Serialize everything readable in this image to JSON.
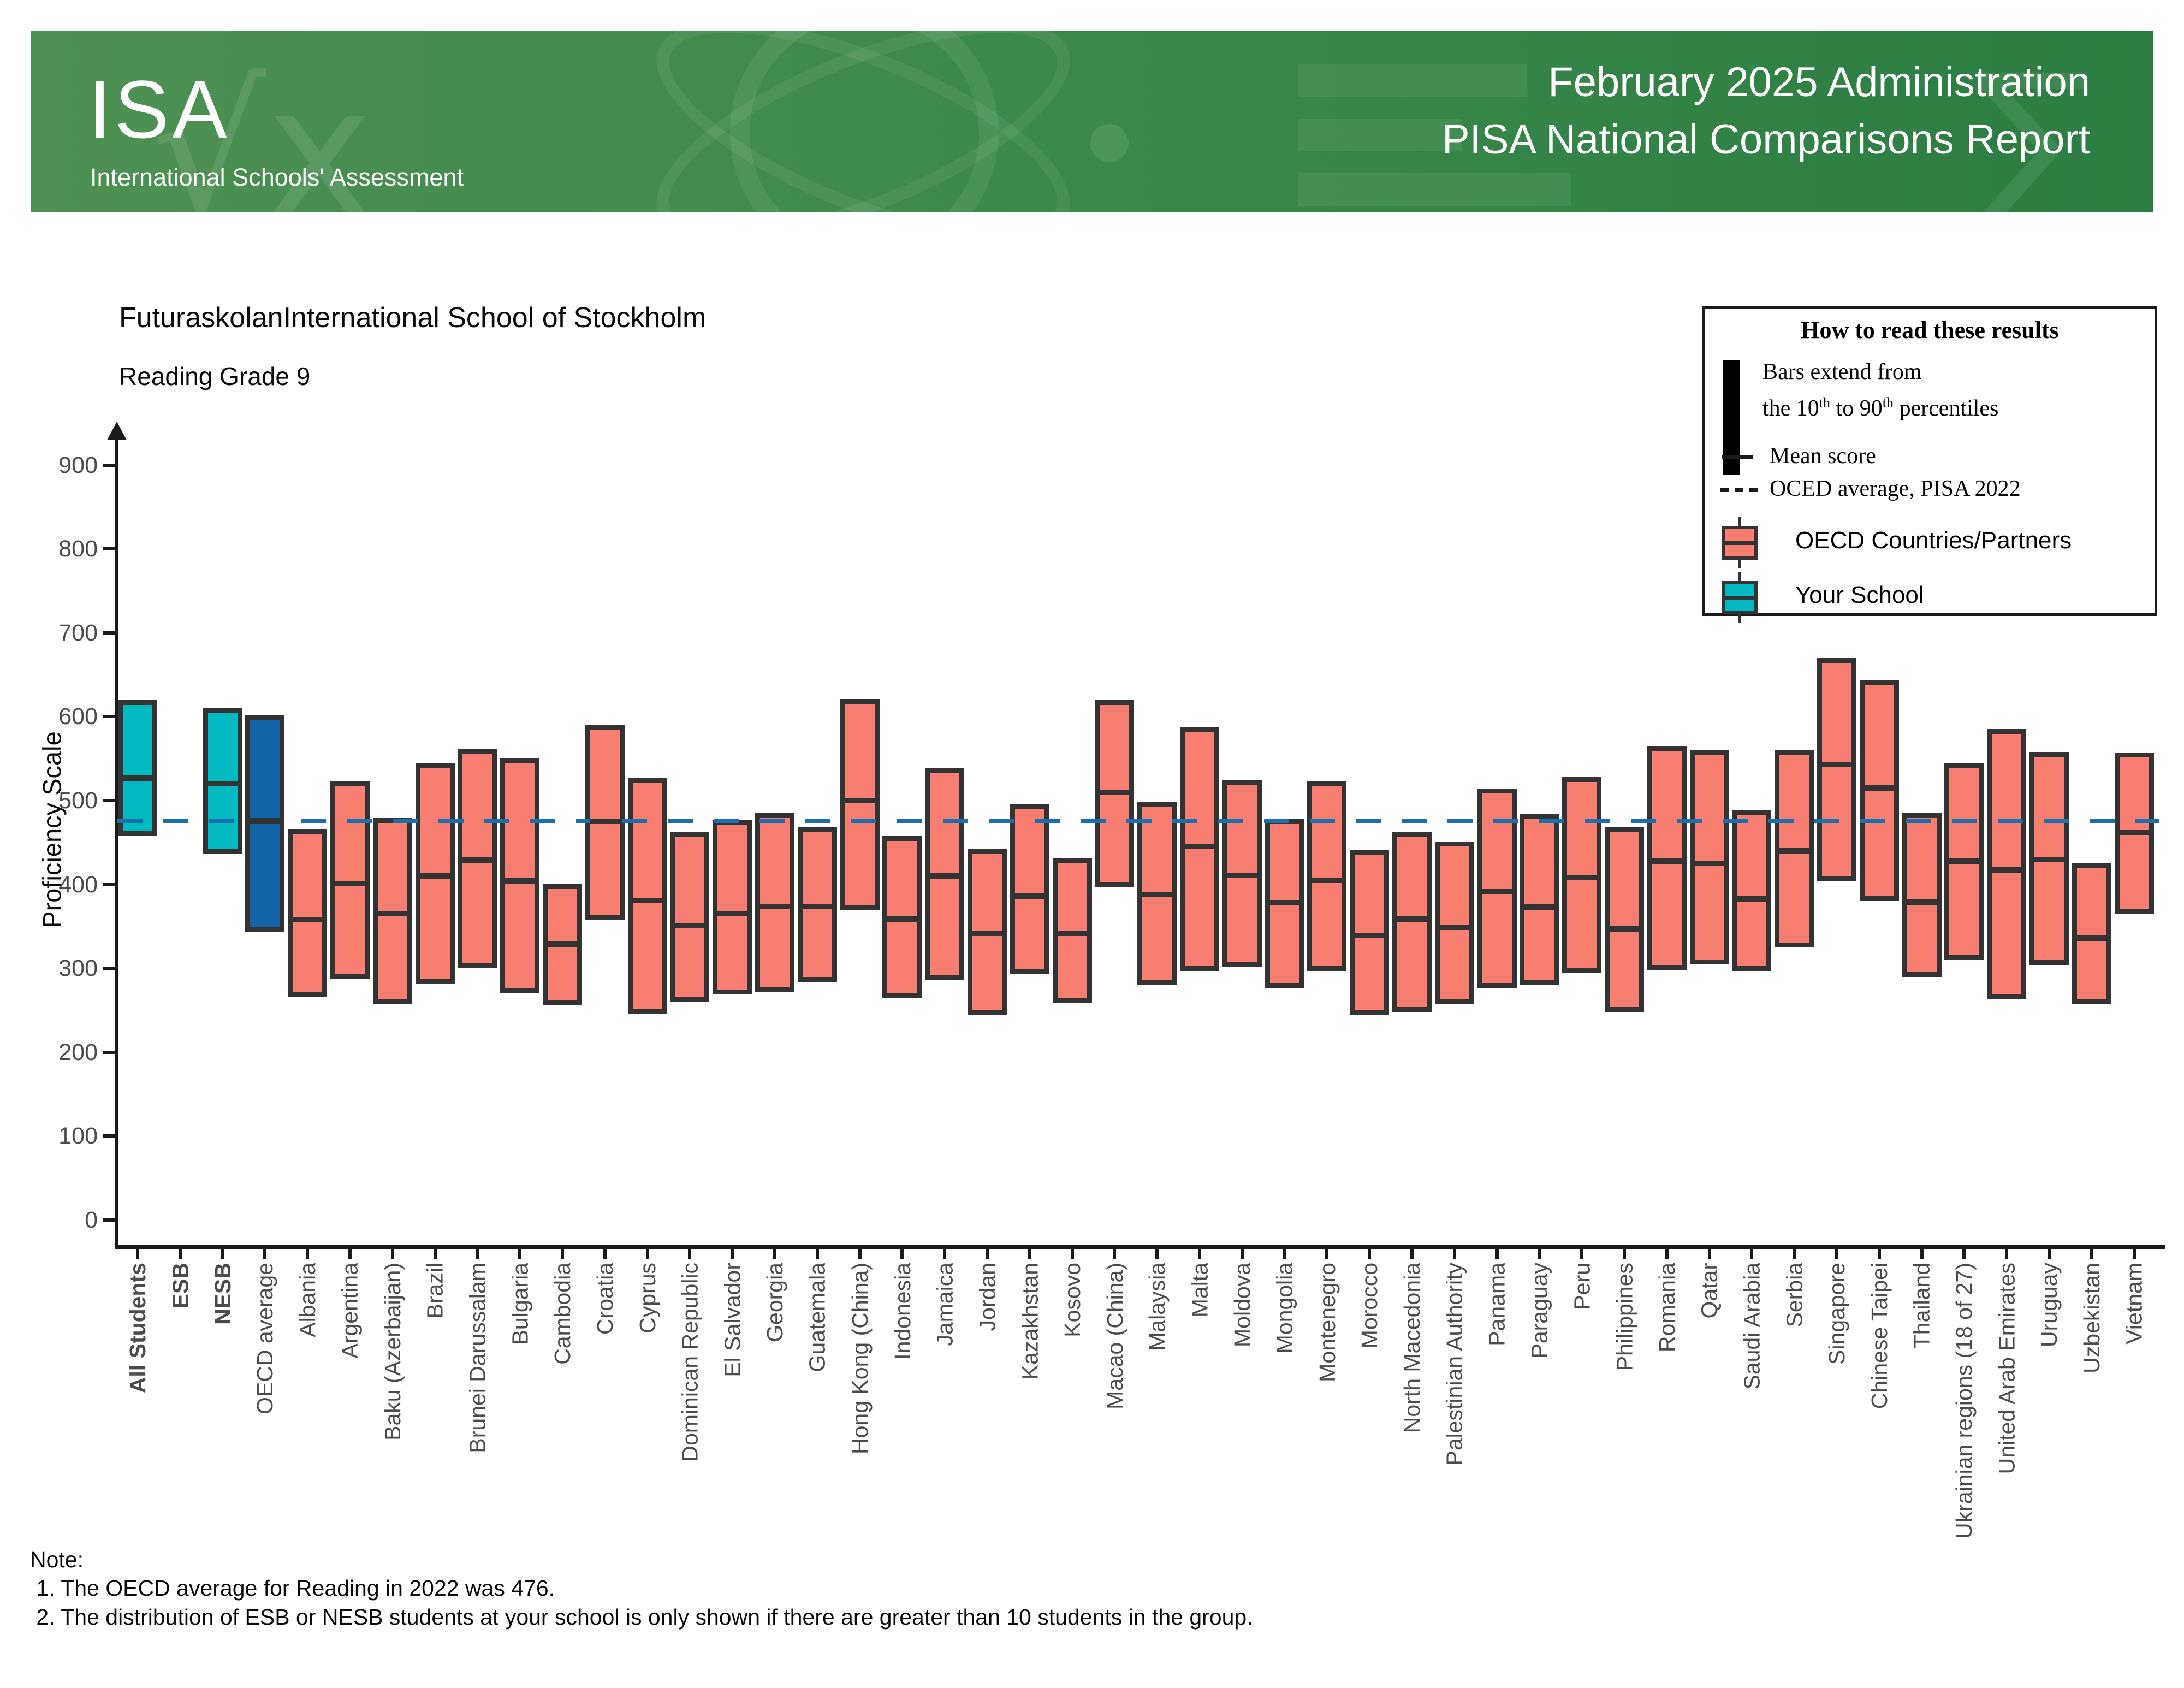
{
  "header": {
    "logo": "ISA",
    "logo_subtitle": "International Schools' Assessment",
    "line1": "February 2025 Administration",
    "line2": "PISA National Comparisons Report",
    "watermarks": {
      "sqrt": "√x",
      "sigma": "∑"
    }
  },
  "titles": {
    "school": "FuturaskolanInternational School of Stockholm",
    "assessment": "Reading Grade 9"
  },
  "legend": {
    "title": "How to read these results",
    "bars_line1": "Bars extend from",
    "bars_line2": {
      "p0": "the 10",
      "sup0": "th",
      "p1": " to 90",
      "sup1": "th",
      "p2": " percentiles"
    },
    "mean_label": "Mean score",
    "ref_label": "OCED average, PISA 2022",
    "countries_label": "OECD Countries/Partners",
    "school_label": "Your School"
  },
  "note": {
    "heading": "Note:",
    "line1": " 1. The OECD average for Reading in 2022 was 476.",
    "line2": " 2. The distribution of ESB or NESB students at your school is only shown if there are greater than 10 students in the group."
  },
  "chart_data": {
    "type": "bar",
    "variant": "boxplot-10th-90th-percentile",
    "title": "FuturaskolanInternational School of Stockholm",
    "subtitle": "Reading Grade 9",
    "xlabel": "",
    "ylabel": "Proficiency Scale",
    "ylim": [
      0,
      975
    ],
    "yticks": [
      0,
      100,
      200,
      300,
      400,
      500,
      600,
      700,
      800,
      900
    ],
    "grid": false,
    "reference_line": {
      "value": 476,
      "label": "OCED average, PISA 2022",
      "style": "dashed"
    },
    "colors": {
      "your_school": "#00b9c1",
      "oecd_average_bar": "#1465a8",
      "country": "#f87e72",
      "box_border": "#333333",
      "reference_line": "#1b6fad"
    },
    "categories": [
      {
        "label": "All Students",
        "group": "school",
        "bold": true,
        "p10": 458,
        "mean": 527,
        "p90": 620
      },
      {
        "label": "ESB",
        "group": "school",
        "bold": true,
        "p10": null,
        "mean": null,
        "p90": null
      },
      {
        "label": "NESB",
        "group": "school",
        "bold": true,
        "p10": 437,
        "mean": 520,
        "p90": 611
      },
      {
        "label": "OECD average",
        "group": "oecd",
        "bold": false,
        "p10": 343,
        "mean": 476,
        "p90": 602
      },
      {
        "label": "Albania",
        "group": "country",
        "bold": false,
        "p10": 266,
        "mean": 358,
        "p90": 466
      },
      {
        "label": "Argentina",
        "group": "country",
        "bold": false,
        "p10": 288,
        "mean": 401,
        "p90": 523
      },
      {
        "label": "Baku (Azerbaijan)",
        "group": "country",
        "bold": false,
        "p10": 258,
        "mean": 365,
        "p90": 479
      },
      {
        "label": "Brazil",
        "group": "country",
        "bold": false,
        "p10": 282,
        "mean": 410,
        "p90": 544
      },
      {
        "label": "Brunei Darussalam",
        "group": "country",
        "bold": false,
        "p10": 301,
        "mean": 429,
        "p90": 562
      },
      {
        "label": "Bulgaria",
        "group": "country",
        "bold": false,
        "p10": 271,
        "mean": 404,
        "p90": 551
      },
      {
        "label": "Cambodia",
        "group": "country",
        "bold": false,
        "p10": 256,
        "mean": 329,
        "p90": 401
      },
      {
        "label": "Croatia",
        "group": "country",
        "bold": false,
        "p10": 358,
        "mean": 475,
        "p90": 590
      },
      {
        "label": "Cyprus",
        "group": "country",
        "bold": false,
        "p10": 246,
        "mean": 381,
        "p90": 527
      },
      {
        "label": "Dominican Republic",
        "group": "country",
        "bold": false,
        "p10": 260,
        "mean": 351,
        "p90": 462
      },
      {
        "label": "El Salvador",
        "group": "country",
        "bold": false,
        "p10": 269,
        "mean": 365,
        "p90": 477
      },
      {
        "label": "Georgia",
        "group": "country",
        "bold": false,
        "p10": 272,
        "mean": 374,
        "p90": 486
      },
      {
        "label": "Guatemala",
        "group": "country",
        "bold": false,
        "p10": 284,
        "mean": 374,
        "p90": 469
      },
      {
        "label": "Hong Kong (China)",
        "group": "country",
        "bold": false,
        "p10": 370,
        "mean": 500,
        "p90": 621
      },
      {
        "label": "Indonesia",
        "group": "country",
        "bold": false,
        "p10": 264,
        "mean": 359,
        "p90": 458
      },
      {
        "label": "Jamaica",
        "group": "country",
        "bold": false,
        "p10": 286,
        "mean": 410,
        "p90": 539
      },
      {
        "label": "Jordan",
        "group": "country",
        "bold": false,
        "p10": 244,
        "mean": 342,
        "p90": 443
      },
      {
        "label": "Kazakhstan",
        "group": "country",
        "bold": false,
        "p10": 293,
        "mean": 386,
        "p90": 496
      },
      {
        "label": "Kosovo",
        "group": "country",
        "bold": false,
        "p10": 259,
        "mean": 342,
        "p90": 431
      },
      {
        "label": "Macao (China)",
        "group": "country",
        "bold": false,
        "p10": 397,
        "mean": 510,
        "p90": 620
      },
      {
        "label": "Malaysia",
        "group": "country",
        "bold": false,
        "p10": 280,
        "mean": 388,
        "p90": 499
      },
      {
        "label": "Malta",
        "group": "country",
        "bold": false,
        "p10": 297,
        "mean": 445,
        "p90": 587
      },
      {
        "label": "Moldova",
        "group": "country",
        "bold": false,
        "p10": 302,
        "mean": 411,
        "p90": 525
      },
      {
        "label": "Mongolia",
        "group": "country",
        "bold": false,
        "p10": 277,
        "mean": 378,
        "p90": 478
      },
      {
        "label": "Montenegro",
        "group": "country",
        "bold": false,
        "p10": 297,
        "mean": 405,
        "p90": 523
      },
      {
        "label": "Morocco",
        "group": "country",
        "bold": false,
        "p10": 245,
        "mean": 339,
        "p90": 441
      },
      {
        "label": "North Macedonia",
        "group": "country",
        "bold": false,
        "p10": 248,
        "mean": 359,
        "p90": 462
      },
      {
        "label": "Palestinian Authority",
        "group": "country",
        "bold": false,
        "p10": 257,
        "mean": 349,
        "p90": 451
      },
      {
        "label": "Panama",
        "group": "country",
        "bold": false,
        "p10": 277,
        "mean": 392,
        "p90": 514
      },
      {
        "label": "Paraguay",
        "group": "country",
        "bold": false,
        "p10": 280,
        "mean": 373,
        "p90": 484
      },
      {
        "label": "Peru",
        "group": "country",
        "bold": false,
        "p10": 295,
        "mean": 408,
        "p90": 528
      },
      {
        "label": "Philippines",
        "group": "country",
        "bold": false,
        "p10": 248,
        "mean": 347,
        "p90": 469
      },
      {
        "label": "Romania",
        "group": "country",
        "bold": false,
        "p10": 298,
        "mean": 428,
        "p90": 565
      },
      {
        "label": "Qatar",
        "group": "country",
        "bold": false,
        "p10": 305,
        "mean": 425,
        "p90": 560
      },
      {
        "label": "Saudi Arabia",
        "group": "country",
        "bold": false,
        "p10": 297,
        "mean": 383,
        "p90": 488
      },
      {
        "label": "Serbia",
        "group": "country",
        "bold": false,
        "p10": 325,
        "mean": 440,
        "p90": 560
      },
      {
        "label": "Singapore",
        "group": "country",
        "bold": false,
        "p10": 404,
        "mean": 543,
        "p90": 670
      },
      {
        "label": "Chinese Taipei",
        "group": "country",
        "bold": false,
        "p10": 380,
        "mean": 515,
        "p90": 643
      },
      {
        "label": "Thailand",
        "group": "country",
        "bold": false,
        "p10": 290,
        "mean": 379,
        "p90": 485
      },
      {
        "label": "Ukrainian regions (18 of 27)",
        "group": "country",
        "bold": false,
        "p10": 310,
        "mean": 428,
        "p90": 545
      },
      {
        "label": "United Arab Emirates",
        "group": "country",
        "bold": false,
        "p10": 263,
        "mean": 417,
        "p90": 585
      },
      {
        "label": "Uruguay",
        "group": "country",
        "bold": false,
        "p10": 304,
        "mean": 430,
        "p90": 558
      },
      {
        "label": "Uzbekistan",
        "group": "country",
        "bold": false,
        "p10": 258,
        "mean": 336,
        "p90": 425
      },
      {
        "label": "Vietnam",
        "group": "country",
        "bold": false,
        "p10": 365,
        "mean": 462,
        "p90": 557
      }
    ]
  }
}
